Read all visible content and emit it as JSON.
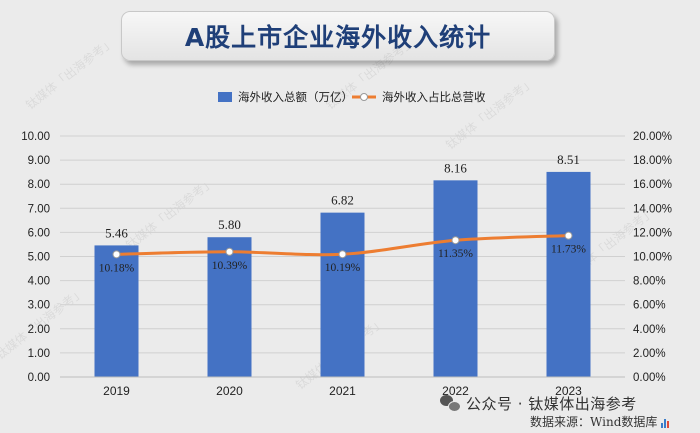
{
  "title": "A股上市企业海外收入统计",
  "legend": {
    "bar_label": "海外收入总额（万亿）",
    "line_label": "海外收入占比总营收"
  },
  "colors": {
    "bar": "#4472c4",
    "line": "#ed7d31",
    "marker": "#ffffff",
    "grid": "#d0d0d0",
    "title_text": "#1f3f78"
  },
  "footer": {
    "brand": "公众号 · 钛媒体出海参考",
    "source": "数据来源：Wind数据库"
  },
  "watermark": "钛媒体「出海参考」",
  "chart_data": {
    "type": "bar+line",
    "categories": [
      "2019",
      "2020",
      "2021",
      "2022",
      "2023"
    ],
    "series": [
      {
        "name": "海外收入总额（万亿）",
        "type": "bar",
        "axis": "left",
        "values": [
          5.46,
          5.8,
          6.82,
          8.16,
          8.51
        ],
        "labels": [
          "5.46",
          "5.80",
          "6.82",
          "8.16",
          "8.51"
        ]
      },
      {
        "name": "海外收入占比总营收",
        "type": "line",
        "axis": "right",
        "values": [
          10.18,
          10.39,
          10.19,
          11.35,
          11.73
        ],
        "labels": [
          "10.18%",
          "10.39%",
          "10.19%",
          "11.35%",
          "11.73%"
        ]
      }
    ],
    "y_left": {
      "min": 0,
      "max": 10,
      "step": 1,
      "ticks": [
        "0.00",
        "1.00",
        "2.00",
        "3.00",
        "4.00",
        "5.00",
        "6.00",
        "7.00",
        "8.00",
        "9.00",
        "10.00"
      ]
    },
    "y_right": {
      "min": 0,
      "max": 20,
      "step": 2,
      "ticks": [
        "0.00%",
        "2.00%",
        "4.00%",
        "6.00%",
        "8.00%",
        "10.00%",
        "12.00%",
        "14.00%",
        "16.00%",
        "18.00%",
        "20.00%"
      ]
    },
    "grid": true,
    "legend_position": "top"
  }
}
